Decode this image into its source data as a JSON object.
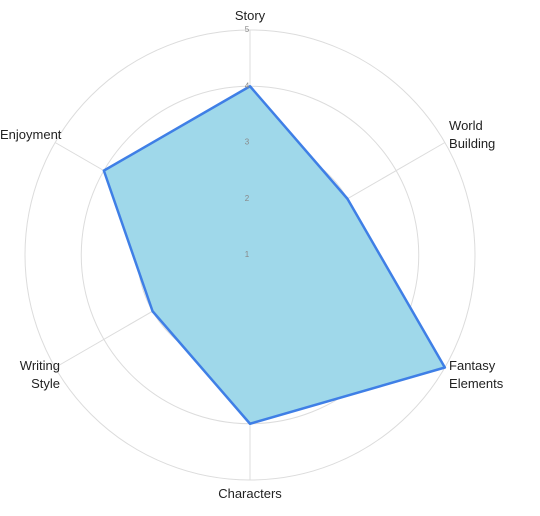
{
  "chart_data": {
    "type": "radar",
    "categories": [
      "Story",
      "World Building",
      "Fantasy Elements",
      "Characters",
      "Writing Style",
      "Enjoyment"
    ],
    "values": [
      4,
      3,
      5,
      4,
      3,
      4
    ],
    "fill_color": "#9fd8ea",
    "color": "#3f7fe6",
    "rlim": [
      1,
      5
    ],
    "rticks": [
      1,
      2,
      3,
      4,
      5
    ],
    "grid": true
  }
}
